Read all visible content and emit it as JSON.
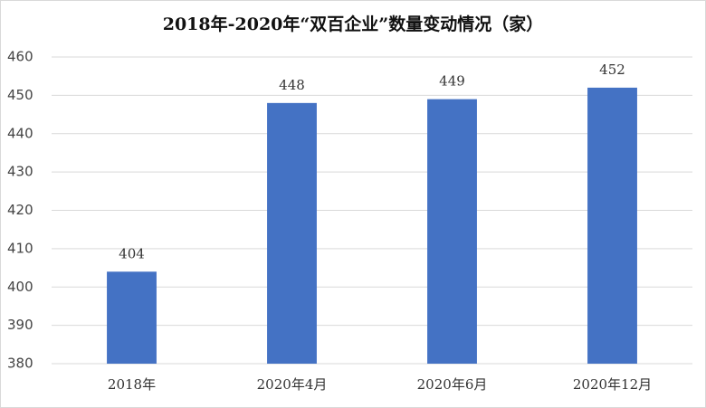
{
  "chart_data": {
    "type": "bar",
    "title": "2018年-2020年“双百企业”数量变动情况（家）",
    "categories": [
      "2018年",
      "2020年4月",
      "2020年6月",
      "2020年12月"
    ],
    "values": [
      404,
      448,
      449,
      452
    ],
    "color": "#4472c4",
    "ylim": [
      380,
      460
    ],
    "yticks": [
      380,
      390,
      400,
      410,
      420,
      430,
      440,
      450,
      460
    ],
    "grid": true
  }
}
